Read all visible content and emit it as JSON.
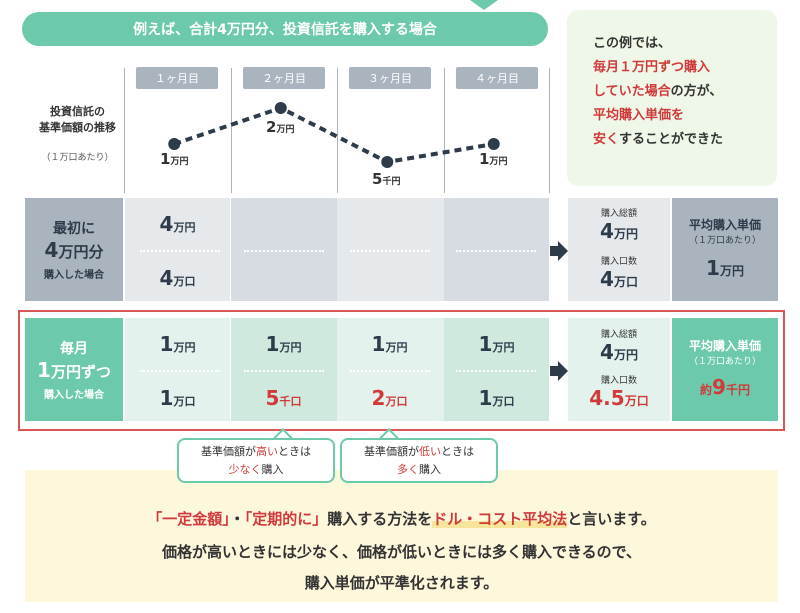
{
  "header": {
    "title": "例えば、合計4万円分、投資信託を購入する場合"
  },
  "note": {
    "line1": "この例では、",
    "line2": "毎月１万円ずつ購入",
    "line3a": "していた場合",
    "line3b": "の方が、",
    "line4": "平均購入単価を",
    "line5a": "安く",
    "line5b": "することができた"
  },
  "months": [
    "１ヶ月目",
    "２ヶ月目",
    "３ヶ月目",
    "４ヶ月目"
  ],
  "trend": {
    "title_line1": "投資信託の",
    "title_line2": "基準価額の推移",
    "subtitle": "（１万口あたり）",
    "chart_data": {
      "type": "line",
      "categories": [
        "１ヶ月目",
        "２ヶ月目",
        "３ヶ月目",
        "４ヶ月目"
      ],
      "values": [
        10000,
        20000,
        5000,
        10000
      ]
    },
    "labels": [
      {
        "num": "1",
        "unit": "万円"
      },
      {
        "num": "2",
        "unit": "万円"
      },
      {
        "num": "5",
        "unit": "千円"
      },
      {
        "num": "1",
        "unit": "万円"
      }
    ]
  },
  "lump": {
    "label_line1": "最初に",
    "label_num": "4",
    "label_unit": "万円分",
    "label_line3": "購入した場合",
    "amount_num": "4",
    "amount_unit": "万円",
    "units_num": "4",
    "units_unit": "万口",
    "total_label": "購入総額",
    "total_num": "4",
    "total_unit": "万円",
    "units_label": "購入口数",
    "units_total_num": "4",
    "units_total_unit": "万口",
    "avg_title": "平均購入単価",
    "avg_sub": "（１万口あたり）",
    "avg_num": "1",
    "avg_unit": "万円"
  },
  "monthly": {
    "label_line1": "毎月",
    "label_num": "1",
    "label_unit": "万円ずつ",
    "label_line3": "購入した場合",
    "amounts": [
      {
        "num": "1",
        "unit": "万円"
      },
      {
        "num": "1",
        "unit": "万円"
      },
      {
        "num": "1",
        "unit": "万円"
      },
      {
        "num": "1",
        "unit": "万円"
      }
    ],
    "units": [
      {
        "num": "1",
        "unit": "万口"
      },
      {
        "num": "5",
        "unit": "千口"
      },
      {
        "num": "2",
        "unit": "万口"
      },
      {
        "num": "1",
        "unit": "万口"
      }
    ],
    "total_label": "購入総額",
    "total_num": "4",
    "total_unit": "万円",
    "units_label": "購入口数",
    "units_total_num": "4.5",
    "units_total_unit": "万口",
    "avg_title": "平均購入単価",
    "avg_sub": "（１万口あたり）",
    "avg_prefix": "約",
    "avg_num": "9",
    "avg_unit": "千円"
  },
  "bubbles": [
    {
      "line1a": "基準価額が",
      "line1b": "高い",
      "line1c": "ときは",
      "line2a": "少なく",
      "line2b": "購入"
    },
    {
      "line1a": "基準価額が",
      "line1b": "低い",
      "line1c": "ときは",
      "line2a": "多く",
      "line2b": "購入"
    }
  ],
  "bottom": {
    "q1": "「一定金額」",
    "dot": "・",
    "q2": "「定期的に」",
    "mid": "購入する方法を",
    "term": "ドル・コスト平均法",
    "end": "と言います。",
    "line2": "価格が高いときには少なく、価格が低いときには多く購入できるので、",
    "line3": "購入単価が平準化されます。"
  },
  "colors": {
    "green": "#6cc9ac",
    "red": "#d13a3a",
    "navy": "#2d3b4a",
    "gray": "#d6dce2",
    "lightgreen": "#d5ece3"
  }
}
